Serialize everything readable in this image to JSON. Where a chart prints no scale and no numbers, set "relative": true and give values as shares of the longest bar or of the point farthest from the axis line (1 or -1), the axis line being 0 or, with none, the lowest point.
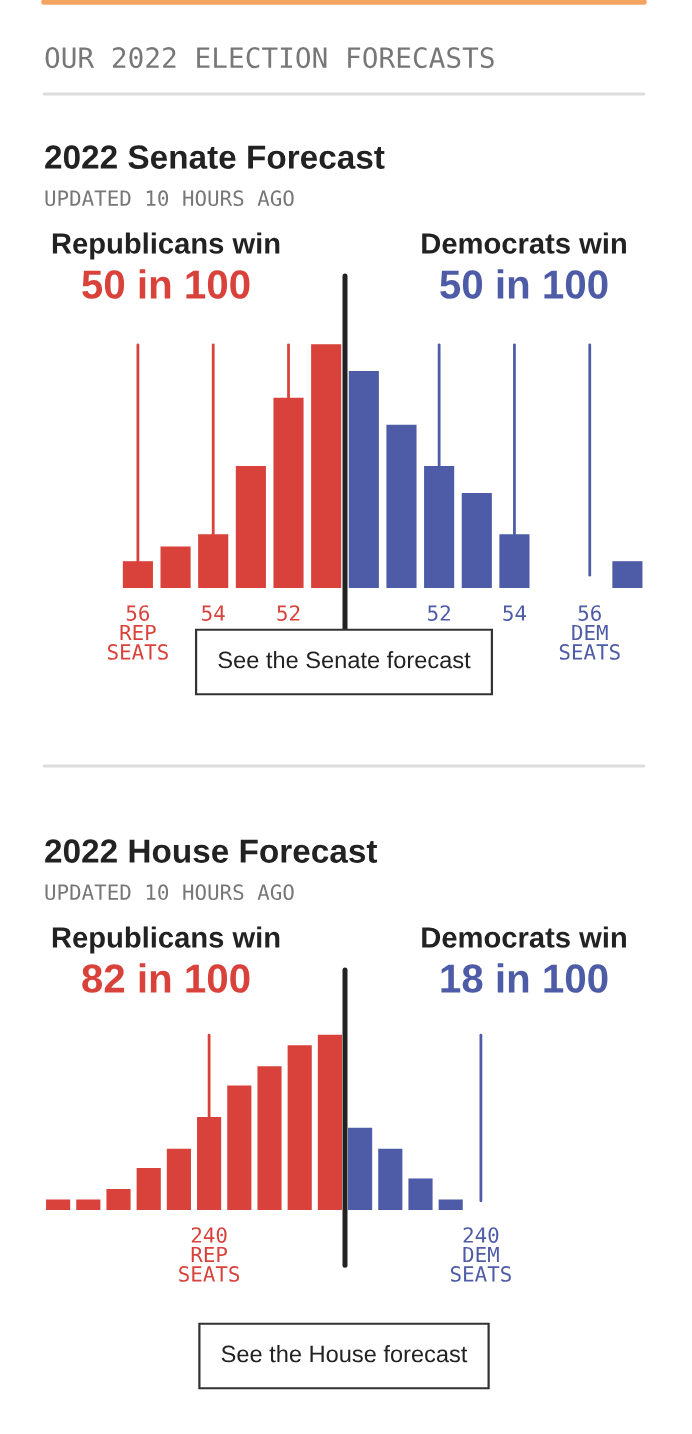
{
  "chart_data": [
    {
      "type": "bar",
      "title": "2022 Senate Forecast",
      "subtitle": "UPDATED 10 HOURS AGO",
      "relative": true,
      "annotations": [
        "OUR 2022 ELECTION FORECASTS",
        "Republicans win",
        "50 in 100",
        "Democrats win",
        "50 in 100",
        "See the Senate forecast"
      ],
      "categories": [
        "56\nREP\nSEATS",
        null,
        "54",
        null,
        "52",
        null,
        null,
        null,
        "52",
        null,
        "54",
        null,
        "56\nDEM\nSEATS",
        null
      ],
      "values": [
        0.11,
        0.17,
        0.22,
        0.5,
        0.78,
        1,
        0.89,
        0.67,
        0.5,
        0.39,
        0.22,
        0,
        0,
        0.11
      ],
      "colors": [
        "#d9423b",
        "#d9423b",
        "#d9423b",
        "#d9423b",
        "#d9423b",
        "#d9423b",
        "#4e5ba6",
        "#4e5ba6",
        "#4e5ba6",
        "#4e5ba6",
        "#4e5ba6",
        "#4e5ba6",
        "#4e5ba6",
        "#4e5ba6"
      ],
      "grid": "x"
    },
    {
      "type": "bar",
      "title": "2022 House Forecast",
      "subtitle": "UPDATED 10 HOURS AGO",
      "relative": true,
      "annotations": [
        "Republicans win",
        "82 in 100",
        "Democrats win",
        "18 in 100",
        "See the House forecast"
      ],
      "categories": [
        null,
        null,
        null,
        null,
        null,
        "240\nREP\nSEATS",
        null,
        null,
        null,
        null,
        null,
        null,
        null,
        null,
        "240\nDEM\nSEATS"
      ],
      "values": [
        0.06,
        0.06,
        0.12,
        0.24,
        0.35,
        0.53,
        0.71,
        0.82,
        0.94,
        1,
        0.47,
        0.35,
        0.18,
        0.06,
        null
      ],
      "colors": [
        "#d9423b",
        "#d9423b",
        "#d9423b",
        "#d9423b",
        "#d9423b",
        "#d9423b",
        "#d9423b",
        "#d9423b",
        "#d9423b",
        "#d9423b",
        "#4e5ba6",
        "#4e5ba6",
        "#4e5ba6",
        "#4e5ba6",
        "#4e5ba6"
      ],
      "grid": "x"
    }
  ]
}
